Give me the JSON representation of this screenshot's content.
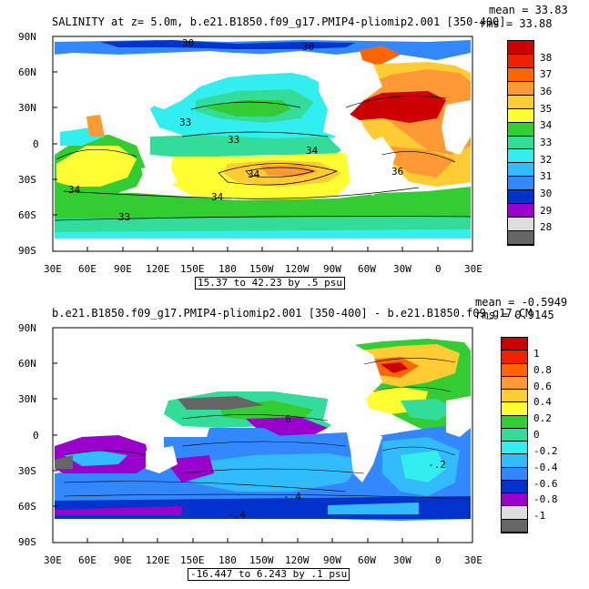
{
  "panels": [
    {
      "title": "SALINITY at z=    5.0m, b.e21.B1850.f09_g17.PMIP4-pliomip2.001 [350-400]",
      "mean": "mean = 33.83",
      "rms": "rms = 33.88",
      "range_label": "15.37 to 42.23 by .5 psu",
      "lat_ticks": [
        "90N",
        "60N",
        "30N",
        "0",
        "30S",
        "60S",
        "90S"
      ],
      "lon_ticks": [
        "30E",
        "60E",
        "90E",
        "120E",
        "150E",
        "180",
        "150W",
        "120W",
        "90W",
        "60W",
        "30W",
        "0",
        "30E"
      ],
      "colorbar": {
        "labels": [
          "38",
          "37",
          "36",
          "35",
          "34",
          "33",
          "32",
          "31",
          "30",
          "29",
          "28"
        ],
        "colors": [
          "#cc0000",
          "#ee2200",
          "#ff6600",
          "#ff9933",
          "#ffcc33",
          "#ffff33",
          "#33cc33",
          "#33dd99",
          "#33eeee",
          "#33bbff",
          "#3388ff",
          "#0033cc",
          "#9900cc",
          "#dddddd",
          "#666666"
        ]
      },
      "contour_labels": [
        "33",
        "33",
        "34",
        "34",
        "36",
        "34",
        "34",
        "33",
        "30",
        "30"
      ]
    },
    {
      "title": "b.e21.B1850.f09_g17.PMIP4-pliomip2.001 [350-400] - b.e21.B1850.f09_g17.CM",
      "mean": "mean = -0.5949",
      "rms": "rms = 0.9145",
      "range_label": "-16.447 to 6.243 by .1 psu",
      "lat_ticks": [
        "90N",
        "60N",
        "30N",
        "0",
        "30S",
        "60S",
        "90S"
      ],
      "lon_ticks": [
        "30E",
        "60E",
        "90E",
        "120E",
        "150E",
        "180",
        "150W",
        "120W",
        "90W",
        "60W",
        "30W",
        "0",
        "30E"
      ],
      "colorbar": {
        "labels": [
          "1",
          "0.8",
          "0.6",
          "0.4",
          "0.2",
          "0",
          "-0.2",
          "-0.4",
          "-0.6",
          "-0.8",
          "-1"
        ],
        "colors": [
          "#cc0000",
          "#ee2200",
          "#ff6600",
          "#ff9933",
          "#ffcc33",
          "#ffff33",
          "#33cc33",
          "#33dd99",
          "#33eeee",
          "#33bbff",
          "#3388ff",
          "#0033cc",
          "#9900cc",
          "#dddddd",
          "#666666"
        ]
      },
      "contour_labels": [
        "-.6",
        "-.4",
        "-.4",
        "-.2"
      ]
    }
  ]
}
